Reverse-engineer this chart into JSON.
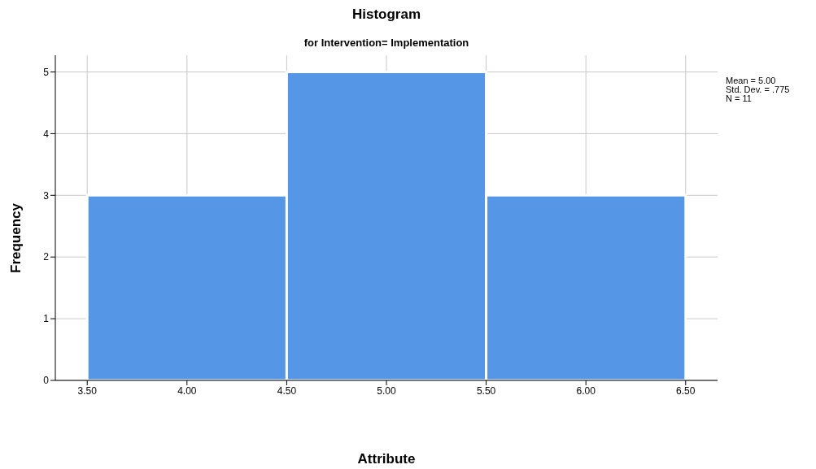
{
  "chart_data": {
    "type": "histogram",
    "title": "Histogram",
    "subtitle": "for Intervention= Implementation",
    "xlabel": "Attribute",
    "ylabel": "Frequency",
    "bins": [
      3.5,
      4.5,
      5.5,
      6.5
    ],
    "values": [
      3,
      5,
      3
    ],
    "color": "#5596e6",
    "xlim": [
      3.34,
      6.66
    ],
    "xticks": [
      {
        "value": 3.5,
        "label": "3.50"
      },
      {
        "value": 4,
        "label": "4.00"
      },
      {
        "value": 4.5,
        "label": "4.50"
      },
      {
        "value": 5,
        "label": "5.00"
      },
      {
        "value": 5.5,
        "label": "5.50"
      },
      {
        "value": 6,
        "label": "6.00"
      },
      {
        "value": 6.5,
        "label": "6.50"
      }
    ],
    "ylim": [
      0,
      5.27
    ],
    "yticks": [
      0,
      1,
      2,
      3,
      4,
      5
    ],
    "grid": true,
    "annotations": [
      "Mean = 5.00",
      "Std. Dev. = .775",
      "N = 11"
    ]
  }
}
